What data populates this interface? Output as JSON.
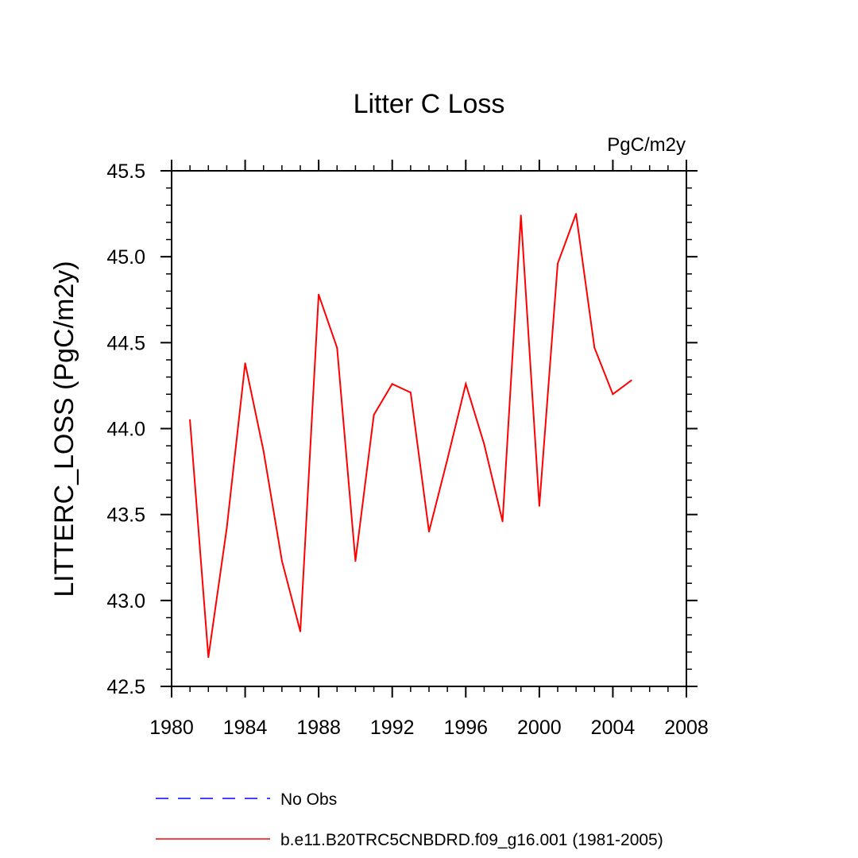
{
  "chart_data": {
    "type": "line",
    "title": "Litter C Loss",
    "units_label": "PgC/m2y",
    "xlabel": "",
    "ylabel": "LITTERC_LOSS  (PgC/m2y)",
    "xlim": [
      1980,
      2008
    ],
    "ylim": [
      42.5,
      45.5
    ],
    "x_ticks": [
      1980,
      1984,
      1988,
      1992,
      1996,
      2000,
      2004,
      2008
    ],
    "x_tick_labels": [
      "1980",
      "1984",
      "1988",
      "1992",
      "1996",
      "2000",
      "2004",
      "2008"
    ],
    "y_ticks": [
      42.5,
      43.0,
      43.5,
      44.0,
      44.5,
      45.0,
      45.5
    ],
    "y_tick_labels": [
      "42.5",
      "43.0",
      "43.5",
      "44.0",
      "44.5",
      "45.0",
      "45.5"
    ],
    "series": [
      {
        "name": "b.e11.B20TRC5CNBDRD.f09_g16.001 (1981-2005)",
        "color": "#ff0000",
        "style": "solid",
        "x": [
          1981,
          1982,
          1983,
          1984,
          1985,
          1986,
          1987,
          1988,
          1989,
          1990,
          1991,
          1992,
          1993,
          1994,
          1995,
          1996,
          1997,
          1998,
          1999,
          2000,
          2001,
          2002,
          2003,
          2004,
          2005
        ],
        "y": [
          44.05,
          42.67,
          43.42,
          44.38,
          43.87,
          43.23,
          42.82,
          44.78,
          44.47,
          43.23,
          44.08,
          44.26,
          44.21,
          43.4,
          43.82,
          44.26,
          43.91,
          43.46,
          45.24,
          43.55,
          44.96,
          45.25,
          44.47,
          44.2,
          44.28
        ]
      },
      {
        "name": "No Obs",
        "color": "#0000ff",
        "style": "dashed",
        "x": [],
        "y": []
      }
    ],
    "legend": {
      "placement": "bottom",
      "entries": [
        {
          "label": "No Obs",
          "color": "#0000ff",
          "style": "dashed"
        },
        {
          "label": "b.e11.B20TRC5CNBDRD.f09_g16.001 (1981-2005)",
          "color": "#ff0000",
          "style": "solid"
        }
      ]
    }
  }
}
